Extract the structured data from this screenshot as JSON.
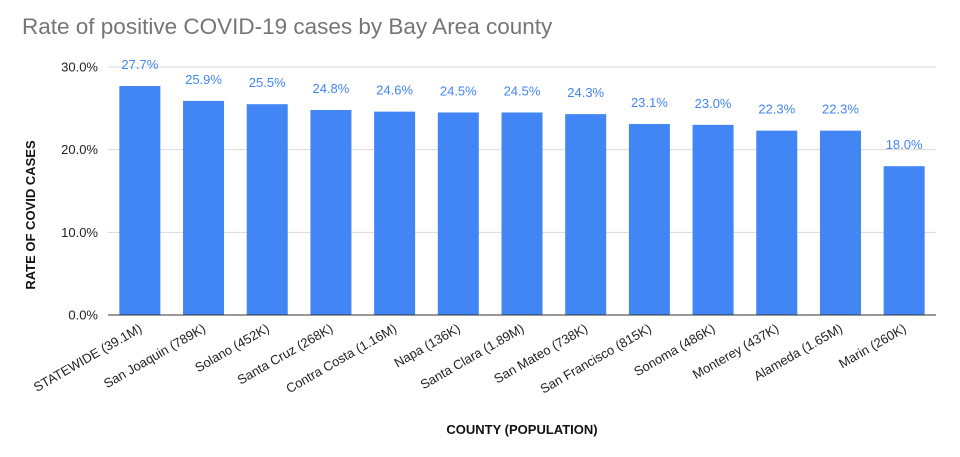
{
  "chart_data": {
    "type": "bar",
    "title": "Rate of positive COVID-19 cases by Bay Area county",
    "xlabel": "COUNTY (POPULATION)",
    "ylabel": "RATE OF COVID CASES",
    "ylim": [
      0,
      30
    ],
    "yticks": [
      "0.0%",
      "10.0%",
      "20.0%",
      "30.0%"
    ],
    "ytick_values": [
      0,
      10,
      20,
      30
    ],
    "grid": true,
    "legend": "none",
    "bar_color": "#4285f4",
    "categories": [
      "STATEWIDE (39.1M)",
      "San Joaquin (789K)",
      "Solano (452K)",
      "Santa Cruz (268K)",
      "Contra Costa (1.16M)",
      "Napa (136K)",
      "Santa Clara (1.89M)",
      "San Mateo (738K)",
      "San Francisco (815K)",
      "Sonoma (486K)",
      "Monterey (437K)",
      "Alameda (1.65M)",
      "Marin (260K)"
    ],
    "values": [
      27.7,
      25.9,
      25.5,
      24.8,
      24.6,
      24.5,
      24.5,
      24.3,
      23.1,
      23.0,
      22.3,
      22.3,
      18.0
    ],
    "data_labels": [
      "27.7%",
      "25.9%",
      "25.5%",
      "24.8%",
      "24.6%",
      "24.5%",
      "24.5%",
      "24.3%",
      "23.1%",
      "23.0%",
      "22.3%",
      "22.3%",
      "18.0%"
    ]
  }
}
